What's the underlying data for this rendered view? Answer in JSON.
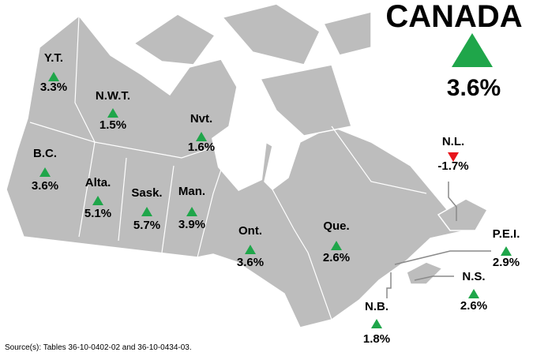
{
  "map": {
    "title": "CANADA",
    "national_change": "3.6%",
    "regions": [
      {
        "name": "Y.T.",
        "change": "3.3%"
      },
      {
        "name": "N.W.T.",
        "change": "1.5%"
      },
      {
        "name": "Nvt.",
        "change": "1.6%"
      },
      {
        "name": "B.C.",
        "change": "3.6%"
      },
      {
        "name": "Alta.",
        "change": "5.1%"
      },
      {
        "name": "Sask.",
        "change": "5.7%"
      },
      {
        "name": "Man.",
        "change": "3.9%"
      },
      {
        "name": "Ont.",
        "change": "3.6%"
      },
      {
        "name": "Que.",
        "change": "2.6%"
      },
      {
        "name": "N.L.",
        "change": "-1.7%"
      },
      {
        "name": "P.E.I.",
        "change": "2.9%"
      },
      {
        "name": "N.S.",
        "change": "2.6%"
      },
      {
        "name": "N.B.",
        "change": "1.8%"
      }
    ],
    "source": "Source(s): Tables 36-10-0402-02 and 36-10-0434-03."
  }
}
